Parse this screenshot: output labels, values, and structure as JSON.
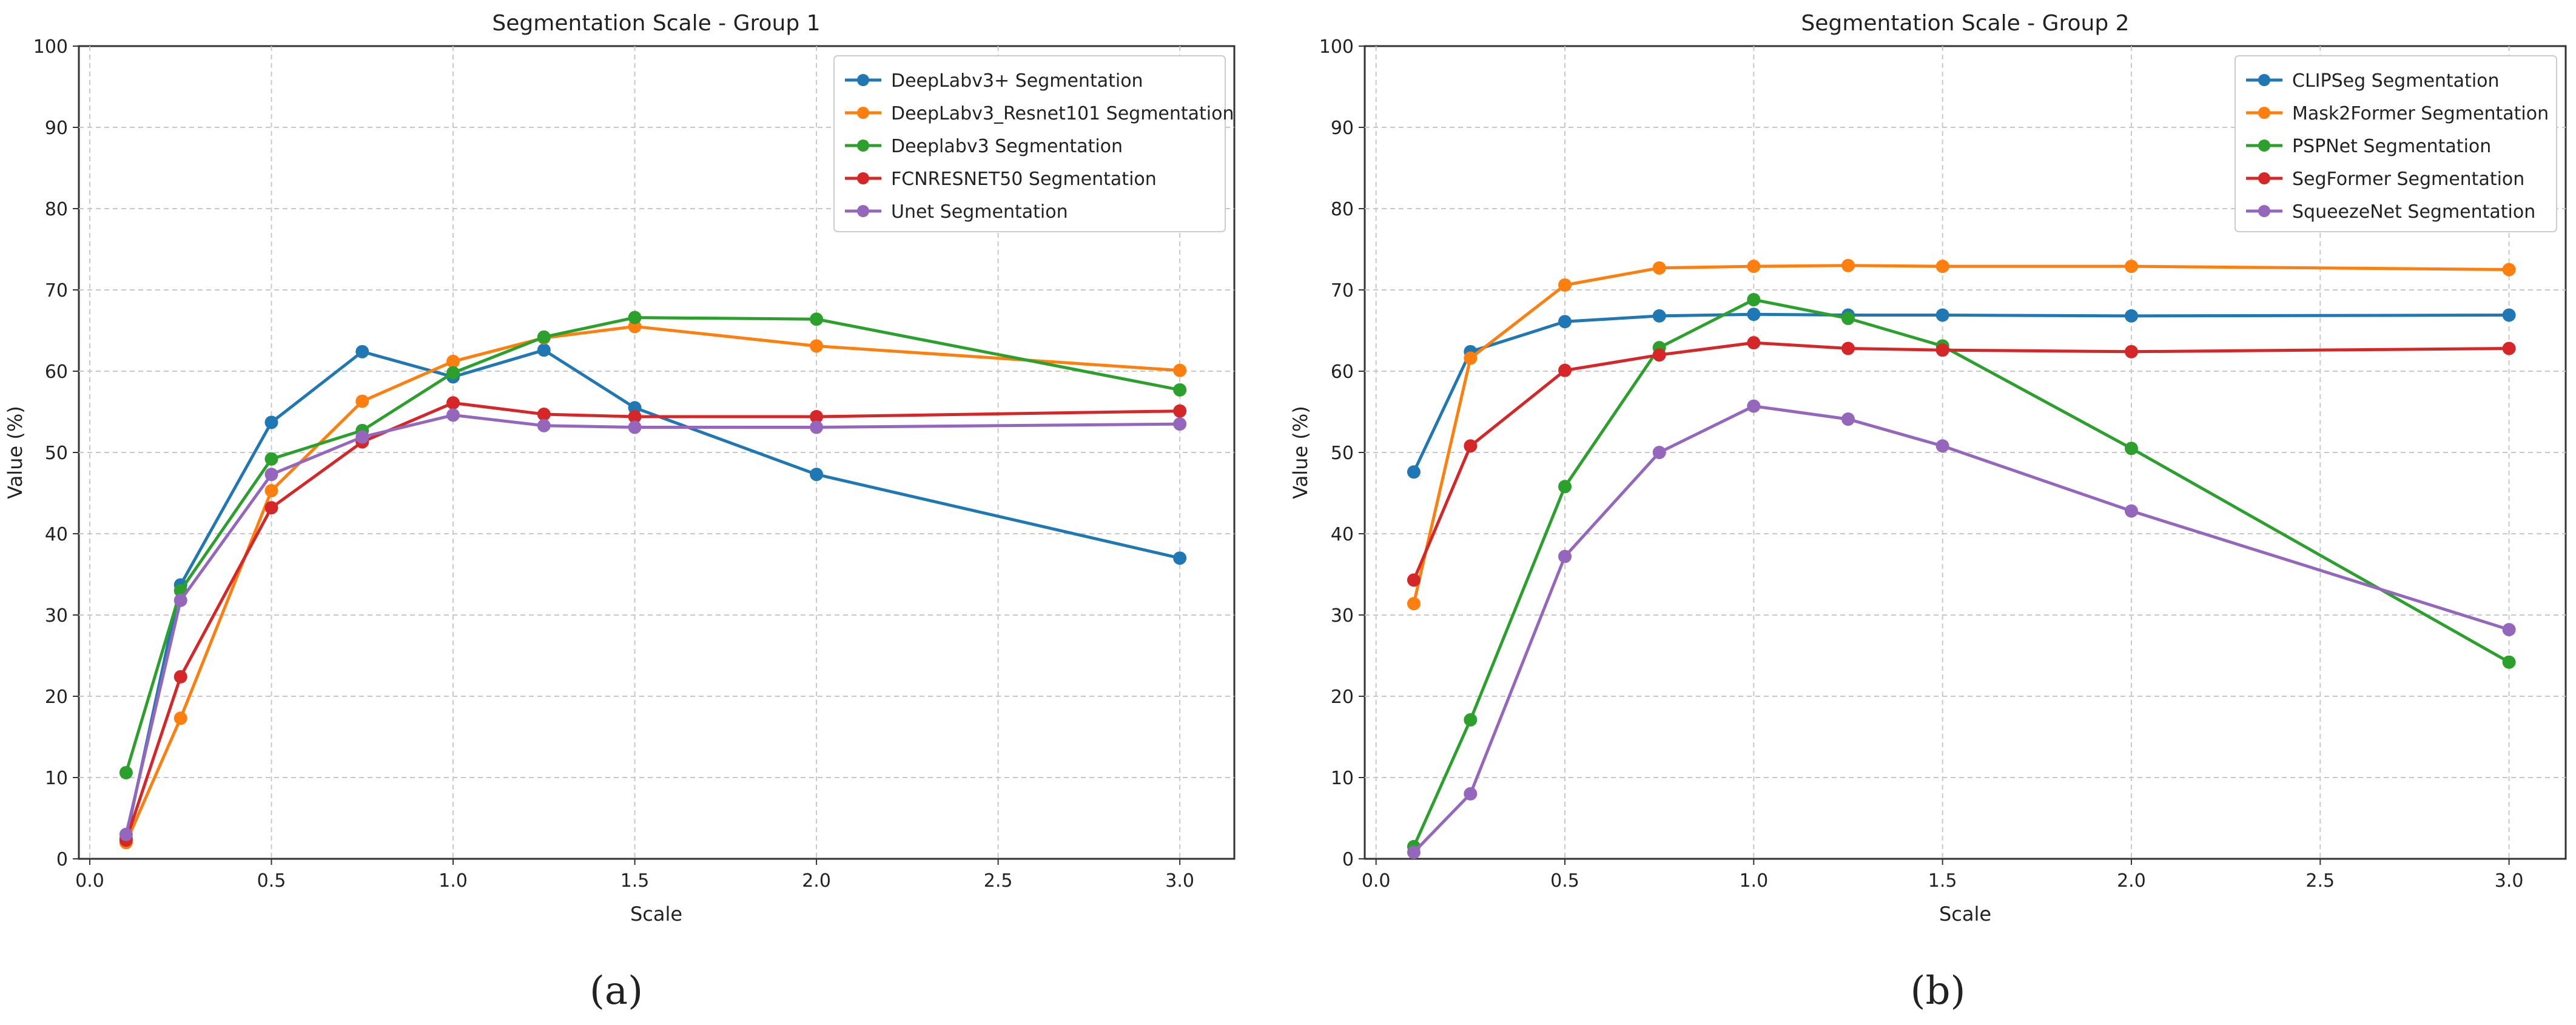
{
  "chart_data": [
    {
      "id": "a",
      "type": "line",
      "title": "Segmentation Scale - Group 1",
      "xlabel": "Scale",
      "ylabel": "Value (%)",
      "xlim": [
        -0.03,
        3.15
      ],
      "ylim": [
        0,
        100
      ],
      "xticks": [
        0.0,
        0.5,
        1.0,
        1.5,
        2.0,
        2.5,
        3.0
      ],
      "xtick_labels": [
        "0.0",
        "0.5",
        "1.0",
        "1.5",
        "2.0",
        "2.5",
        "3.0"
      ],
      "yticks": [
        0,
        10,
        20,
        30,
        40,
        50,
        60,
        70,
        80,
        90,
        100
      ],
      "ytick_labels": [
        "0",
        "10",
        "20",
        "30",
        "40",
        "50",
        "60",
        "70",
        "80",
        "90",
        "100"
      ],
      "grid": true,
      "legend_position": "top-right",
      "x": [
        0.1,
        0.25,
        0.5,
        0.75,
        1.0,
        1.25,
        1.5,
        2.0,
        3.0
      ],
      "series": [
        {
          "name": "DeepLabv3+ Segmentation",
          "color": "#1f77b4",
          "values": [
            2.5,
            33.7,
            53.7,
            62.4,
            59.3,
            62.6,
            55.5,
            47.3,
            37.0
          ]
        },
        {
          "name": "DeepLabv3_Resnet101 Segmentation",
          "color": "#ff7f0e",
          "values": [
            2.0,
            17.3,
            45.3,
            56.3,
            61.2,
            64.1,
            65.5,
            63.1,
            60.1
          ]
        },
        {
          "name": "Deeplabv3  Segmentation",
          "color": "#2ca02c",
          "values": [
            10.6,
            33.0,
            49.2,
            52.7,
            59.8,
            64.2,
            66.6,
            66.4,
            57.7
          ]
        },
        {
          "name": "FCNRESNET50 Segmentation",
          "color": "#d62728",
          "values": [
            2.3,
            22.4,
            43.2,
            51.3,
            56.1,
            54.7,
            54.4,
            54.4,
            55.1
          ]
        },
        {
          "name": "Unet Segmentation",
          "color": "#9467bd",
          "values": [
            3.0,
            31.8,
            47.3,
            51.9,
            54.6,
            53.3,
            53.1,
            53.1,
            53.5
          ]
        }
      ]
    },
    {
      "id": "b",
      "type": "line",
      "title": "Segmentation Scale - Group 2",
      "xlabel": "Scale",
      "ylabel": "Value (%)",
      "xlim": [
        -0.03,
        3.15
      ],
      "ylim": [
        0,
        100
      ],
      "xticks": [
        0.0,
        0.5,
        1.0,
        1.5,
        2.0,
        2.5,
        3.0
      ],
      "xtick_labels": [
        "0.0",
        "0.5",
        "1.0",
        "1.5",
        "2.0",
        "2.5",
        "3.0"
      ],
      "yticks": [
        0,
        10,
        20,
        30,
        40,
        50,
        60,
        70,
        80,
        90,
        100
      ],
      "ytick_labels": [
        "0",
        "10",
        "20",
        "30",
        "40",
        "50",
        "60",
        "70",
        "80",
        "90",
        "100"
      ],
      "grid": true,
      "legend_position": "top-right",
      "x": [
        0.1,
        0.25,
        0.5,
        0.75,
        1.0,
        1.25,
        1.5,
        2.0,
        3.0
      ],
      "series": [
        {
          "name": "CLIPSeg Segmentation",
          "color": "#1f77b4",
          "values": [
            47.6,
            62.4,
            66.1,
            66.8,
            67.0,
            66.9,
            66.9,
            66.8,
            66.9
          ]
        },
        {
          "name": "Mask2Former Segmentation",
          "color": "#ff7f0e",
          "values": [
            31.4,
            61.6,
            70.6,
            72.7,
            72.9,
            73.0,
            72.9,
            72.9,
            72.5
          ]
        },
        {
          "name": "PSPNet Segmentation",
          "color": "#2ca02c",
          "values": [
            1.5,
            17.1,
            45.8,
            62.9,
            68.8,
            66.5,
            63.1,
            50.5,
            24.2
          ]
        },
        {
          "name": "SegFormer Segmentation",
          "color": "#d62728",
          "values": [
            34.3,
            50.8,
            60.1,
            62.0,
            63.5,
            62.8,
            62.6,
            62.4,
            62.8
          ]
        },
        {
          "name": "SqueezeNet Segmentation",
          "color": "#9467bd",
          "values": [
            0.8,
            8.0,
            37.2,
            50.0,
            55.7,
            54.1,
            50.8,
            42.8,
            28.2
          ]
        }
      ]
    }
  ],
  "captions": {
    "a": "(a)",
    "b": "(b)"
  }
}
